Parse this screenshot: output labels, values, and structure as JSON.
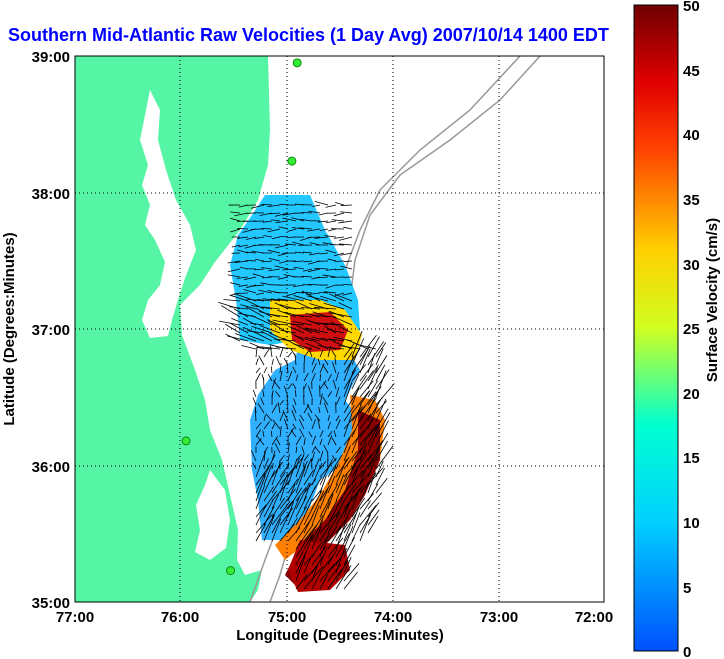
{
  "title": "Southern Mid-Atlantic Raw Velocities (1 Day Avg) 2007/10/14 1400 EDT",
  "x_axis": {
    "label": "Longitude (Degrees:Minutes)",
    "ticks": [
      "77:00",
      "76:00",
      "75:00",
      "74:00",
      "73:00",
      "72:00"
    ],
    "range": [
      -77,
      -72
    ]
  },
  "y_axis": {
    "label": "Latitude (Degrees:Minutes)",
    "ticks": [
      "39:00",
      "38:00",
      "37:00",
      "36:00",
      "35:00"
    ],
    "range": [
      35,
      39
    ]
  },
  "colorbar": {
    "label": "Surface Velocity (cm/s)",
    "ticks": [
      "50",
      "45",
      "40",
      "35",
      "30",
      "25",
      "20",
      "15",
      "10",
      "5",
      "0"
    ],
    "range": [
      0,
      50
    ]
  },
  "colors": {
    "title": "#0000ff",
    "land": "#55f5a5",
    "grid": "#000000",
    "bathymetry": "#999999",
    "station": "#33ee33"
  },
  "stations": [
    {
      "lon": -74.9,
      "lat": 38.95
    },
    {
      "lon": -74.95,
      "lat": 38.23
    },
    {
      "lon": -75.95,
      "lat": 36.18
    },
    {
      "lon": -75.53,
      "lat": 35.23
    }
  ]
}
